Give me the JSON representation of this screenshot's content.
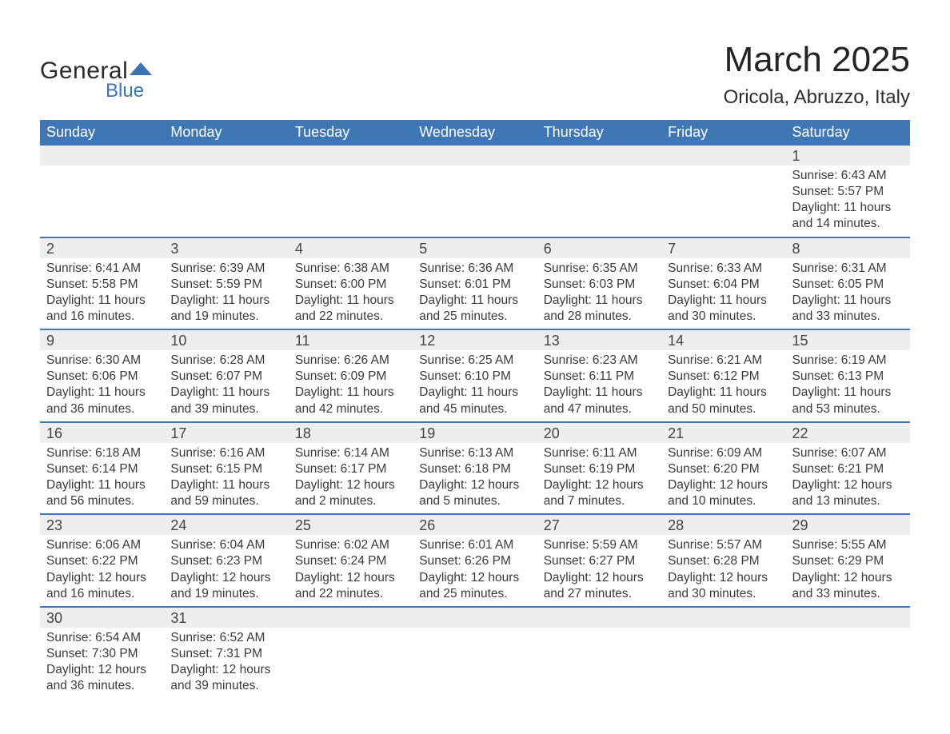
{
  "logo": {
    "text1": "General",
    "text2": "Blue",
    "color1": "#2b2b2b",
    "color2": "#3b74b0",
    "mark_color": "#3b74b0"
  },
  "title": {
    "month_year": "March 2025",
    "location": "Oricola, Abruzzo, Italy"
  },
  "colors": {
    "header_bg": "#3f76b4",
    "header_text": "#ffffff",
    "daynum_bg": "#eeeeee",
    "border": "#3f76b4",
    "body_text": "#3a3a3a",
    "page_bg": "#ffffff"
  },
  "day_headers": [
    "Sunday",
    "Monday",
    "Tuesday",
    "Wednesday",
    "Thursday",
    "Friday",
    "Saturday"
  ],
  "weeks": [
    [
      null,
      null,
      null,
      null,
      null,
      null,
      {
        "n": "1",
        "sunrise": "6:43 AM",
        "sunset": "5:57 PM",
        "daylight": "11 hours and 14 minutes."
      }
    ],
    [
      {
        "n": "2",
        "sunrise": "6:41 AM",
        "sunset": "5:58 PM",
        "daylight": "11 hours and 16 minutes."
      },
      {
        "n": "3",
        "sunrise": "6:39 AM",
        "sunset": "5:59 PM",
        "daylight": "11 hours and 19 minutes."
      },
      {
        "n": "4",
        "sunrise": "6:38 AM",
        "sunset": "6:00 PM",
        "daylight": "11 hours and 22 minutes."
      },
      {
        "n": "5",
        "sunrise": "6:36 AM",
        "sunset": "6:01 PM",
        "daylight": "11 hours and 25 minutes."
      },
      {
        "n": "6",
        "sunrise": "6:35 AM",
        "sunset": "6:03 PM",
        "daylight": "11 hours and 28 minutes."
      },
      {
        "n": "7",
        "sunrise": "6:33 AM",
        "sunset": "6:04 PM",
        "daylight": "11 hours and 30 minutes."
      },
      {
        "n": "8",
        "sunrise": "6:31 AM",
        "sunset": "6:05 PM",
        "daylight": "11 hours and 33 minutes."
      }
    ],
    [
      {
        "n": "9",
        "sunrise": "6:30 AM",
        "sunset": "6:06 PM",
        "daylight": "11 hours and 36 minutes."
      },
      {
        "n": "10",
        "sunrise": "6:28 AM",
        "sunset": "6:07 PM",
        "daylight": "11 hours and 39 minutes."
      },
      {
        "n": "11",
        "sunrise": "6:26 AM",
        "sunset": "6:09 PM",
        "daylight": "11 hours and 42 minutes."
      },
      {
        "n": "12",
        "sunrise": "6:25 AM",
        "sunset": "6:10 PM",
        "daylight": "11 hours and 45 minutes."
      },
      {
        "n": "13",
        "sunrise": "6:23 AM",
        "sunset": "6:11 PM",
        "daylight": "11 hours and 47 minutes."
      },
      {
        "n": "14",
        "sunrise": "6:21 AM",
        "sunset": "6:12 PM",
        "daylight": "11 hours and 50 minutes."
      },
      {
        "n": "15",
        "sunrise": "6:19 AM",
        "sunset": "6:13 PM",
        "daylight": "11 hours and 53 minutes."
      }
    ],
    [
      {
        "n": "16",
        "sunrise": "6:18 AM",
        "sunset": "6:14 PM",
        "daylight": "11 hours and 56 minutes."
      },
      {
        "n": "17",
        "sunrise": "6:16 AM",
        "sunset": "6:15 PM",
        "daylight": "11 hours and 59 minutes."
      },
      {
        "n": "18",
        "sunrise": "6:14 AM",
        "sunset": "6:17 PM",
        "daylight": "12 hours and 2 minutes."
      },
      {
        "n": "19",
        "sunrise": "6:13 AM",
        "sunset": "6:18 PM",
        "daylight": "12 hours and 5 minutes."
      },
      {
        "n": "20",
        "sunrise": "6:11 AM",
        "sunset": "6:19 PM",
        "daylight": "12 hours and 7 minutes."
      },
      {
        "n": "21",
        "sunrise": "6:09 AM",
        "sunset": "6:20 PM",
        "daylight": "12 hours and 10 minutes."
      },
      {
        "n": "22",
        "sunrise": "6:07 AM",
        "sunset": "6:21 PM",
        "daylight": "12 hours and 13 minutes."
      }
    ],
    [
      {
        "n": "23",
        "sunrise": "6:06 AM",
        "sunset": "6:22 PM",
        "daylight": "12 hours and 16 minutes."
      },
      {
        "n": "24",
        "sunrise": "6:04 AM",
        "sunset": "6:23 PM",
        "daylight": "12 hours and 19 minutes."
      },
      {
        "n": "25",
        "sunrise": "6:02 AM",
        "sunset": "6:24 PM",
        "daylight": "12 hours and 22 minutes."
      },
      {
        "n": "26",
        "sunrise": "6:01 AM",
        "sunset": "6:26 PM",
        "daylight": "12 hours and 25 minutes."
      },
      {
        "n": "27",
        "sunrise": "5:59 AM",
        "sunset": "6:27 PM",
        "daylight": "12 hours and 27 minutes."
      },
      {
        "n": "28",
        "sunrise": "5:57 AM",
        "sunset": "6:28 PM",
        "daylight": "12 hours and 30 minutes."
      },
      {
        "n": "29",
        "sunrise": "5:55 AM",
        "sunset": "6:29 PM",
        "daylight": "12 hours and 33 minutes."
      }
    ],
    [
      {
        "n": "30",
        "sunrise": "6:54 AM",
        "sunset": "7:30 PM",
        "daylight": "12 hours and 36 minutes."
      },
      {
        "n": "31",
        "sunrise": "6:52 AM",
        "sunset": "7:31 PM",
        "daylight": "12 hours and 39 minutes."
      },
      null,
      null,
      null,
      null,
      null
    ]
  ],
  "labels": {
    "sunrise": "Sunrise: ",
    "sunset": "Sunset: ",
    "daylight": "Daylight: "
  }
}
